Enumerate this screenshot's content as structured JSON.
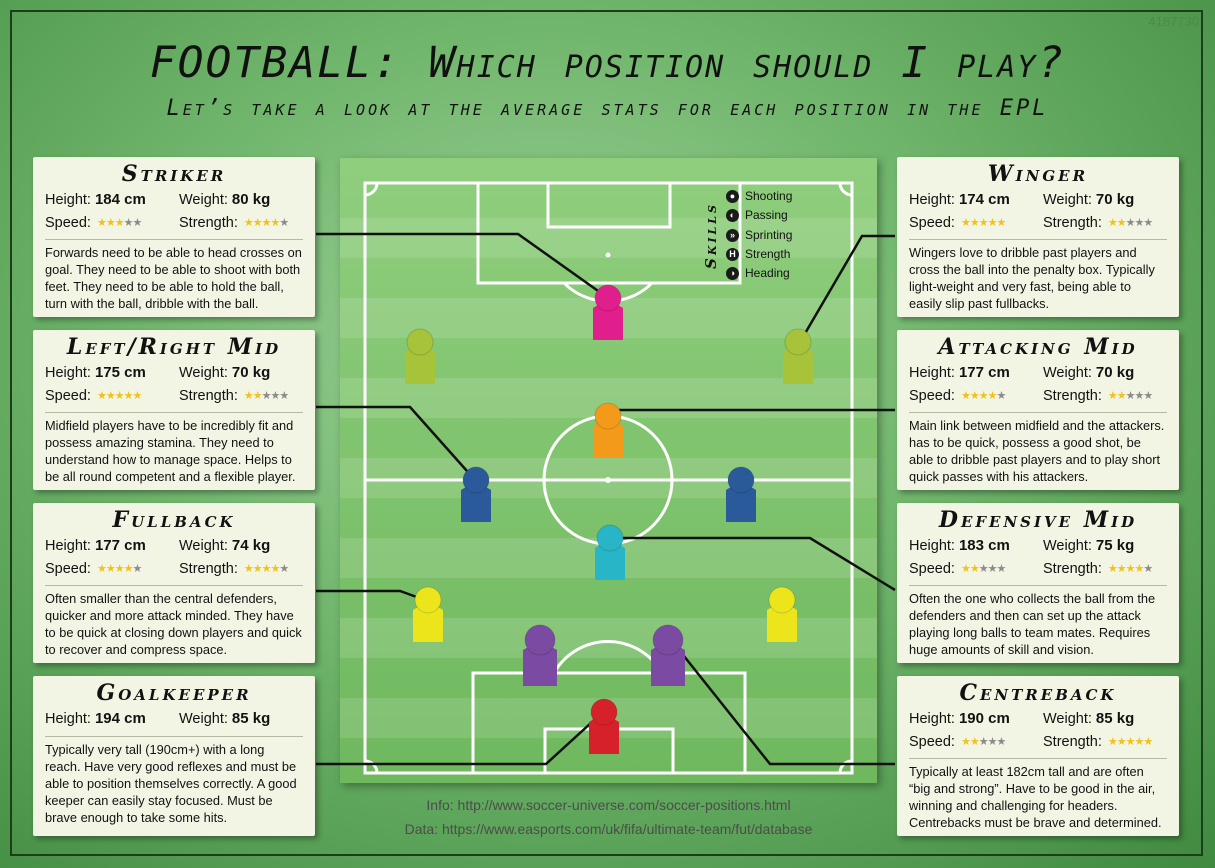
{
  "watermark_id": "4187730",
  "title": "FOOTBALL: Which position should I play?",
  "subtitle": "Let’s take a look at the average stats for each position in the EPL",
  "labels": {
    "height": "Height:",
    "weight": "Weight:",
    "speed": "Speed:",
    "strength": "Strength:"
  },
  "skills": {
    "title": "Skills",
    "items": [
      {
        "label": "Shooting",
        "icon": "ball-icon"
      },
      {
        "label": "Passing",
        "icon": "pass-icon"
      },
      {
        "label": "Sprinting",
        "icon": "runner-icon"
      },
      {
        "label": "Strength",
        "icon": "dumbbell-icon"
      },
      {
        "label": "Heading",
        "icon": "head-icon"
      }
    ]
  },
  "positions": {
    "striker": {
      "name": "Striker",
      "height": "184 cm",
      "weight": "80 kg",
      "speed": 3,
      "strength": 4,
      "desc": "Forwards need to be able to head crosses on goal. They need to be able to shoot with both feet. They need to be able to hold the ball, turn with the ball, dribble with the ball."
    },
    "lrmid": {
      "name": "Left/Right Mid",
      "height": "175 cm",
      "weight": "70 kg",
      "speed": 5,
      "strength": 2,
      "desc": "Midfield players have to be incredibly fit and possess amazing stamina. They need to understand how to manage space. Helps to be all round competent and a flexible player."
    },
    "fullback": {
      "name": "Fullback",
      "height": "177 cm",
      "weight": "74 kg",
      "speed": 4,
      "strength": 4,
      "desc": "Often smaller than the central defenders, quicker and more attack minded. They have to be quick at closing down players and quick to recover and compress space."
    },
    "goalkeeper": {
      "name": "Goalkeeper",
      "height": "194 cm",
      "weight": "85 kg",
      "desc": "Typically very tall (190cm+) with a long reach. Have very good reflexes and must be able to position themselves correctly. A good keeper can easily stay focused. Must be brave enough to take some hits."
    },
    "winger": {
      "name": "Winger",
      "height": "174 cm",
      "weight": "70 kg",
      "speed": 5,
      "strength": 2,
      "desc": "Wingers love to dribble past players and cross the ball into the penalty box. Typically light-weight and very fast, being able to easily slip past fullbacks."
    },
    "attmid": {
      "name": "Attacking Mid",
      "height": "177 cm",
      "weight": "70 kg",
      "speed": 4,
      "strength": 2,
      "desc": "Main link between midfield and the attackers. has to be quick, possess a good shot, be able to dribble past players and to play short quick passes with his attackers."
    },
    "defmid": {
      "name": "Defensive Mid",
      "height": "183 cm",
      "weight": "75 kg",
      "speed": 2,
      "strength": 4,
      "desc": "Often the one who collects the ball from the defenders and then can set up the attack playing long balls to team mates. Requires huge amounts of skill and vision."
    },
    "centreback": {
      "name": "Centreback",
      "height": "190 cm",
      "weight": "85 kg",
      "speed": 2,
      "strength": 5,
      "desc": "Typically at least 182cm tall and are often “big and strong”. Have to be good in the air, winning and challenging for headers. Centrebacks must be brave and determined."
    }
  },
  "colors": {
    "striker": "#e01e8c",
    "winger": "#a7c33a",
    "attmid": "#f39a1b",
    "lrmid": "#2a5a9a",
    "defmid": "#29b5c8",
    "fullback": "#ece51c",
    "centreback": "#7b4aa3",
    "goalkeeper": "#d6212a"
  },
  "footer": {
    "info": "Info: http://www.soccer-universe.com/soccer-positions.html",
    "data": "Data: https://www.easports.com/uk/fifa/ultimate-team/fut/database"
  }
}
